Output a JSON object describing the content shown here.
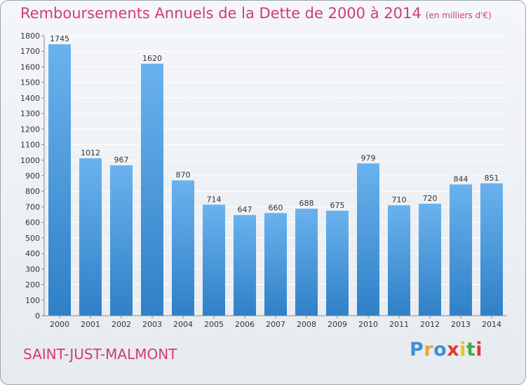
{
  "chart_data": {
    "type": "bar",
    "title": "Remboursements Annuels de la Dette de 2000 à 2014",
    "subtitle": "(en milliers d'€)",
    "xlabel": "",
    "ylabel": "",
    "categories": [
      "2000",
      "2001",
      "2002",
      "2003",
      "2004",
      "2005",
      "2006",
      "2007",
      "2008",
      "2009",
      "2010",
      "2011",
      "2012",
      "2013",
      "2014"
    ],
    "values": [
      1745,
      1012,
      967,
      1620,
      870,
      714,
      647,
      660,
      688,
      675,
      979,
      710,
      720,
      844,
      851
    ],
    "ylim": [
      0,
      1800
    ],
    "yticks": [
      0,
      100,
      200,
      300,
      400,
      500,
      600,
      700,
      800,
      900,
      1000,
      1100,
      1200,
      1300,
      1400,
      1500,
      1600,
      1700,
      1800
    ],
    "grid": true
  },
  "footer": {
    "town": "SAINT-JUST-MALMONT"
  },
  "brand": {
    "letters": [
      "P",
      "r",
      "o",
      "x",
      "i",
      "t",
      "i"
    ],
    "colors": [
      "#3f8fd8",
      "#f2a12a",
      "#3f8fd8",
      "#e03a2f",
      "#e8c21e",
      "#47a84a",
      "#e03a2f"
    ]
  },
  "colors": {
    "bar_top": "#6ab2ee",
    "bar_bottom": "#2f80c7",
    "grid": "#ffffff",
    "axis": "#888888",
    "text": "#333333"
  }
}
